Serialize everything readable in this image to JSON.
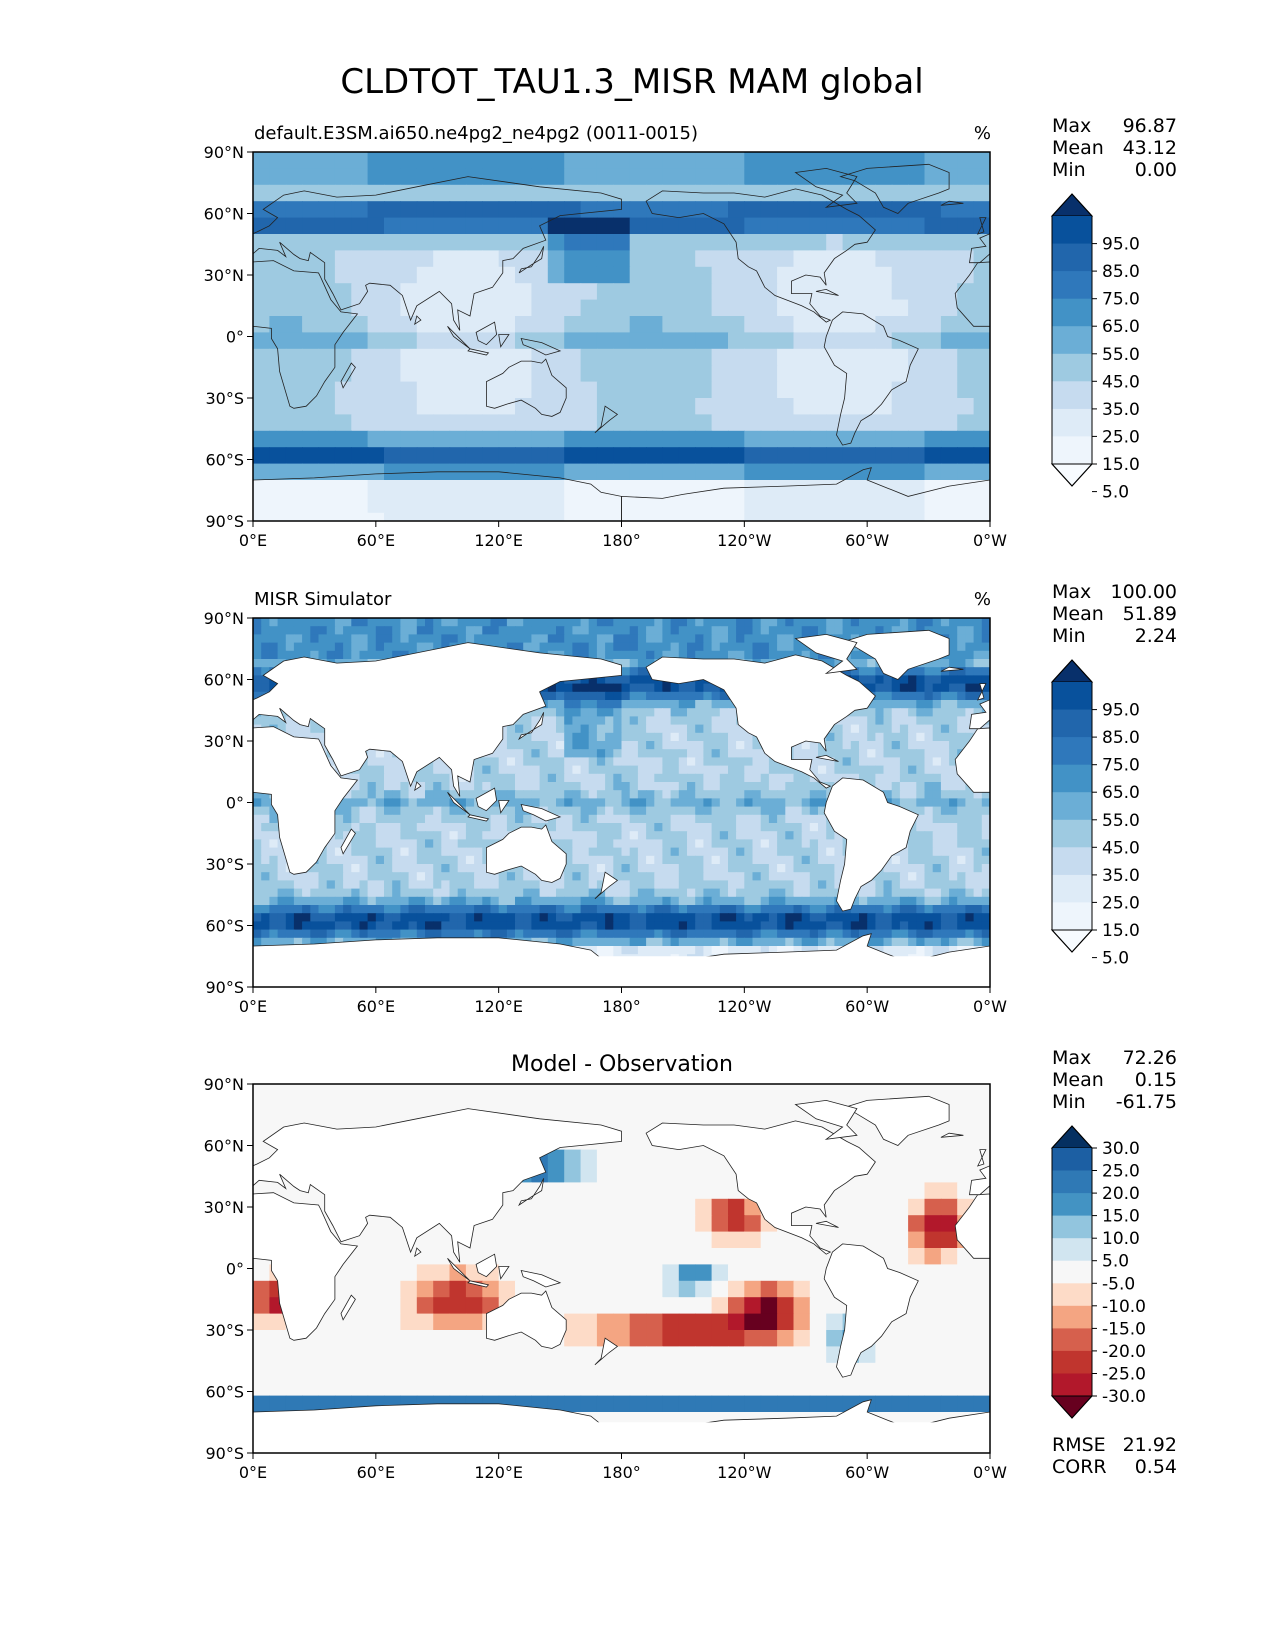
{
  "figure": {
    "title": "CLDTOT_TAU1.3_MISR MAM global"
  },
  "axes": {
    "lon_ticks": [
      "0°E",
      "60°E",
      "120°E",
      "180°",
      "120°W",
      "60°W",
      "0°W"
    ],
    "lat_ticks": [
      "90°N",
      "60°N",
      "30°N",
      "0°",
      "30°S",
      "60°S",
      "90°S"
    ]
  },
  "panels": [
    {
      "id": "model",
      "title_left": "default.E3SM.ai650.ne4pg2_ne4pg2 (0011-0015)",
      "title_center": "",
      "units": "%",
      "stats": [
        {
          "label": "Max",
          "value": "96.87"
        },
        {
          "label": "Mean",
          "value": "43.12"
        },
        {
          "label": "Min",
          "value": "0.00"
        }
      ],
      "colorbar": {
        "labels": [
          "95.0",
          "85.0",
          "75.0",
          "65.0",
          "55.0",
          "45.0",
          "35.0",
          "25.0",
          "15.0",
          "5.0"
        ],
        "colors": [
          "#08306b",
          "#08519c",
          "#2166ac",
          "#2f78bb",
          "#4292c6",
          "#6baed6",
          "#9ecae1",
          "#c6dbef",
          "#deebf7",
          "#eef5fc",
          "#f7fbff"
        ]
      },
      "pattern": "coarse",
      "land_masked": false
    },
    {
      "id": "obs",
      "title_left": "MISR Simulator",
      "title_center": "",
      "units": "%",
      "stats": [
        {
          "label": "Max",
          "value": "100.00"
        },
        {
          "label": "Mean",
          "value": "51.89"
        },
        {
          "label": "Min",
          "value": "2.24"
        }
      ],
      "colorbar": {
        "labels": [
          "95.0",
          "85.0",
          "75.0",
          "65.0",
          "55.0",
          "45.0",
          "35.0",
          "25.0",
          "15.0",
          "5.0"
        ],
        "colors": [
          "#08306b",
          "#08519c",
          "#2166ac",
          "#2f78bb",
          "#4292c6",
          "#6baed6",
          "#9ecae1",
          "#c6dbef",
          "#deebf7",
          "#eef5fc",
          "#f7fbff"
        ]
      },
      "pattern": "fine",
      "land_masked": true
    },
    {
      "id": "diff",
      "title_left": "",
      "title_center": "Model - Observation",
      "units": "",
      "stats": [
        {
          "label": "Max",
          "value": "72.26"
        },
        {
          "label": "Mean",
          "value": "0.15"
        },
        {
          "label": "Min",
          "value": "-61.75"
        }
      ],
      "bottom_stats": [
        {
          "label": "RMSE",
          "value": "21.92"
        },
        {
          "label": "CORR",
          "value": "0.54"
        }
      ],
      "colorbar": {
        "labels": [
          "30.0",
          "25.0",
          "20.0",
          "15.0",
          "10.0",
          "5.0",
          "-5.0",
          "-10.0",
          "-15.0",
          "-20.0",
          "-25.0",
          "-30.0"
        ],
        "colors": [
          "#053061",
          "#1c5fa3",
          "#2f79b5",
          "#4393c3",
          "#92c5de",
          "#d1e5f0",
          "#f7f7f7",
          "#fddbc7",
          "#f4a582",
          "#d6604d",
          "#c0352e",
          "#b2182b",
          "#67001f"
        ]
      },
      "pattern": "diff",
      "land_masked": true
    }
  ]
}
